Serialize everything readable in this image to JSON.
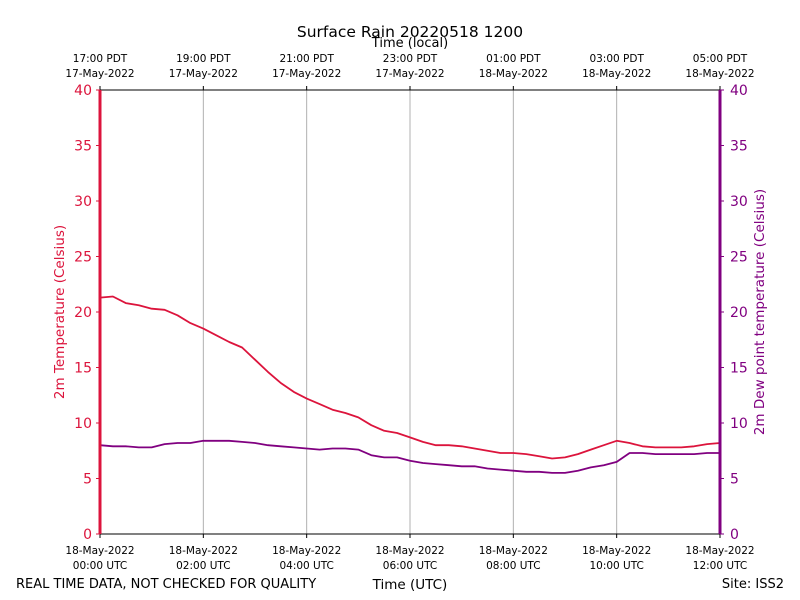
{
  "chart_data": {
    "type": "line",
    "title": "Surface Rain 20220518 1200",
    "xlabel": "Time (UTC)",
    "top_xlabel": "Time (local)",
    "ylabel_left": "2m Temperature (Celsius)",
    "ylabel_right": "2m Dew point temperature (Celsius)",
    "ylim": [
      0,
      40
    ],
    "xlim_hours": [
      0,
      12
    ],
    "yticks": [
      "0",
      "5",
      "10",
      "15",
      "20",
      "25",
      "30",
      "35",
      "40"
    ],
    "bottom_ticks": [
      {
        "date": "18-May-2022",
        "time": "00:00 UTC"
      },
      {
        "date": "18-May-2022",
        "time": "02:00 UTC"
      },
      {
        "date": "18-May-2022",
        "time": "04:00 UTC"
      },
      {
        "date": "18-May-2022",
        "time": "06:00 UTC"
      },
      {
        "date": "18-May-2022",
        "time": "08:00 UTC"
      },
      {
        "date": "18-May-2022",
        "time": "10:00 UTC"
      },
      {
        "date": "18-May-2022",
        "time": "12:00 UTC"
      }
    ],
    "top_ticks": [
      {
        "time": "17:00 PDT",
        "date": "17-May-2022"
      },
      {
        "time": "19:00 PDT",
        "date": "17-May-2022"
      },
      {
        "time": "21:00 PDT",
        "date": "17-May-2022"
      },
      {
        "time": "23:00 PDT",
        "date": "17-May-2022"
      },
      {
        "time": "01:00 PDT",
        "date": "18-May-2022"
      },
      {
        "time": "03:00 PDT",
        "date": "18-May-2022"
      },
      {
        "time": "05:00 PDT",
        "date": "18-May-2022"
      }
    ],
    "x_hours": [
      0,
      0.25,
      0.5,
      0.75,
      1,
      1.25,
      1.5,
      1.75,
      2,
      2.25,
      2.5,
      2.75,
      3,
      3.25,
      3.5,
      3.75,
      4,
      4.25,
      4.5,
      4.75,
      5,
      5.25,
      5.5,
      5.75,
      6,
      6.25,
      6.5,
      6.75,
      7,
      7.25,
      7.5,
      7.75,
      8,
      8.25,
      8.5,
      8.75,
      9,
      9.25,
      9.5,
      9.75,
      10,
      10.25,
      10.5,
      10.75,
      11,
      11.25,
      11.5,
      11.75,
      12
    ],
    "series": [
      {
        "name": "2m Temperature",
        "color": "#dc143c",
        "values": [
          21.3,
          21.4,
          20.8,
          20.6,
          20.3,
          20.2,
          19.7,
          19.0,
          18.5,
          17.9,
          17.3,
          16.8,
          15.7,
          14.6,
          13.6,
          12.8,
          12.2,
          11.7,
          11.2,
          10.9,
          10.5,
          9.8,
          9.3,
          9.1,
          8.7,
          8.3,
          8.0,
          8.0,
          7.9,
          7.7,
          7.5,
          7.3,
          7.3,
          7.2,
          7.0,
          6.8,
          6.9,
          7.2,
          7.6,
          8.0,
          8.4,
          8.2,
          7.9,
          7.8,
          7.8,
          7.8,
          7.9,
          8.1,
          8.2
        ]
      },
      {
        "name": "2m Dew point temperature",
        "color": "#800080",
        "values": [
          8.0,
          7.9,
          7.9,
          7.8,
          7.8,
          8.1,
          8.2,
          8.2,
          8.4,
          8.4,
          8.4,
          8.3,
          8.2,
          8.0,
          7.9,
          7.8,
          7.7,
          7.6,
          7.7,
          7.7,
          7.6,
          7.1,
          6.9,
          6.9,
          6.6,
          6.4,
          6.3,
          6.2,
          6.1,
          6.1,
          5.9,
          5.8,
          5.7,
          5.6,
          5.6,
          5.5,
          5.5,
          5.7,
          6.0,
          6.2,
          6.5,
          7.3,
          7.3,
          7.2,
          7.2,
          7.2,
          7.2,
          7.3,
          7.3
        ]
      }
    ]
  },
  "footer": {
    "quality_note": "REAL TIME DATA, NOT CHECKED FOR QUALITY",
    "site": "Site: ISS2"
  },
  "colors": {
    "left_axis": "#dc143c",
    "right_axis": "#800080",
    "grid": "#b0b0b0"
  }
}
